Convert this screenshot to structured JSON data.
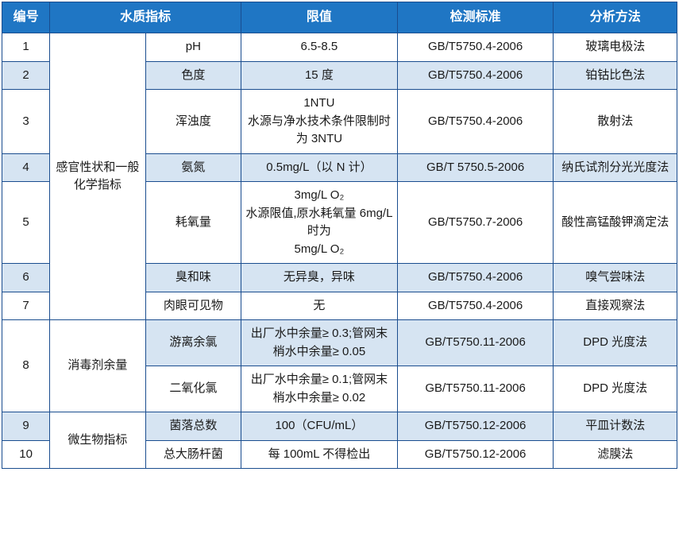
{
  "headers": {
    "num": "编号",
    "indicator": "水质指标",
    "limit": "限值",
    "standard": "检测标准",
    "method": "分析方法"
  },
  "colors": {
    "header_bg": "#1f76c4",
    "header_fg": "#ffffff",
    "border": "#1a4d8f",
    "alt_row_bg": "#d6e4f2",
    "row_bg": "#ffffff",
    "text": "#1a1a1a"
  },
  "font": {
    "family": "Microsoft YaHei / SimSun",
    "size_pt": 11
  },
  "categories": {
    "cat1": "感官性状和一般化学指标",
    "cat2": "消毒剂余量",
    "cat3": "微生物指标"
  },
  "rows": [
    {
      "num": "1",
      "param": "pH",
      "limit": "6.5-8.5",
      "std": "GB/T5750.4-2006",
      "method": "玻璃电极法",
      "alt": false
    },
    {
      "num": "2",
      "param": "色度",
      "limit": "15 度",
      "std": "GB/T5750.4-2006",
      "method": "铂钴比色法",
      "alt": true
    },
    {
      "num": "3",
      "param": "浑浊度",
      "limit": "1NTU\n水源与净水技术条件限制时为 3NTU",
      "std": "GB/T5750.4-2006",
      "method": "散射法",
      "alt": false
    },
    {
      "num": "4",
      "param": "氨氮",
      "limit": "0.5mg/L（以 N 计）",
      "std": "GB/T 5750.5-2006",
      "method": "纳氏试剂分光光度法",
      "alt": true
    },
    {
      "num": "5",
      "param": "耗氧量",
      "limit": "3mg/L O₂\n水源限值,原水耗氧量 6mg/L 时为\n5mg/L O₂",
      "std": "GB/T5750.7-2006",
      "method": "酸性高锰酸钾滴定法",
      "alt": false
    },
    {
      "num": "6",
      "param": "臭和味",
      "limit": "无异臭，异味",
      "std": "GB/T5750.4-2006",
      "method": "嗅气尝味法",
      "alt": true
    },
    {
      "num": "7",
      "param": "肉眼可见物",
      "limit": "无",
      "std": "GB/T5750.4-2006",
      "method": "直接观察法",
      "alt": false
    },
    {
      "num": "8a",
      "param": "游离余氯",
      "limit": "出厂水中余量≥ 0.3;管网末 梢水中余量≥ 0.05",
      "std": "GB/T5750.11-2006",
      "method": "DPD 光度法",
      "alt": true
    },
    {
      "num": "8b",
      "param": "二氧化氯",
      "limit": "出厂水中余量≥ 0.1;管网末 梢水中余量≥ 0.02",
      "std": "GB/T5750.11-2006",
      "method": "DPD 光度法",
      "alt": false
    },
    {
      "num": "9",
      "param": "菌落总数",
      "limit": "100（CFU/mL）",
      "std": "GB/T5750.12-2006",
      "method": "平皿计数法",
      "alt": true
    },
    {
      "num": "10",
      "param": "总大肠杆菌",
      "limit": "每 100mL 不得检出",
      "std": "GB/T5750.12-2006",
      "method": "滤膜法",
      "alt": false
    }
  ],
  "row8_num": "8"
}
